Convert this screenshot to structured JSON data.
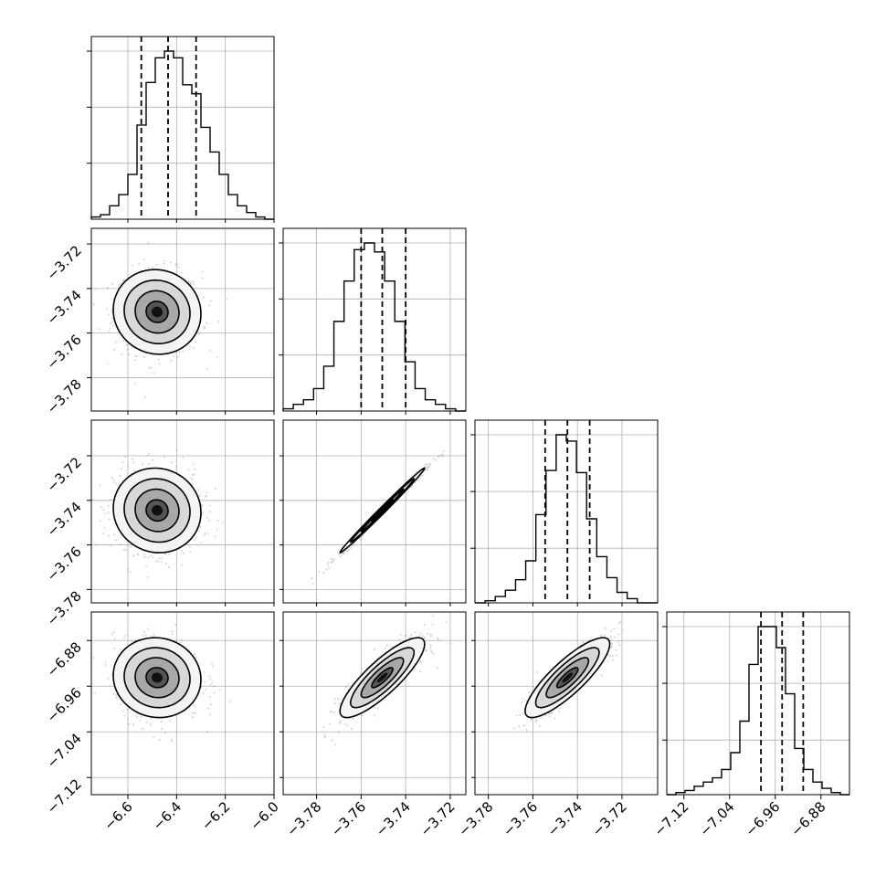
{
  "chart_data": {
    "type": "corner",
    "title": "",
    "n_params": 4,
    "params": [
      {
        "index": 0,
        "label": "",
        "range": [
          -6.75,
          -6.0
        ],
        "ticks": [
          -6.6,
          -6.4,
          -6.2,
          -6.0
        ],
        "tick_labels": [
          "−6.6",
          "−6.4",
          "−6.2",
          "−6.0"
        ],
        "quantiles": [
          -6.545,
          -6.435,
          -6.32
        ]
      },
      {
        "index": 1,
        "label": "",
        "range": [
          -3.795,
          -3.713
        ],
        "ticks": [
          -3.78,
          -3.76,
          -3.74,
          -3.72
        ],
        "tick_labels": [
          "−3.78",
          "−3.76",
          "−3.74",
          "−3.72"
        ],
        "quantiles": [
          -3.76,
          -3.7505,
          -3.74
        ]
      },
      {
        "index": 2,
        "label": "",
        "range": [
          -3.786,
          -3.704
        ],
        "ticks": [
          -3.78,
          -3.76,
          -3.74,
          -3.72
        ],
        "tick_labels": [
          "−3.78",
          "−3.76",
          "−3.74",
          "−3.72"
        ],
        "quantiles": [
          -3.7545,
          -3.7445,
          -3.7345
        ]
      },
      {
        "index": 3,
        "label": "",
        "range": [
          -7.15,
          -6.83
        ],
        "ticks": [
          -7.12,
          -7.04,
          -6.96,
          -6.88
        ],
        "tick_labels": [
          "−7.12",
          "−7.04",
          "−6.96",
          "−6.88"
        ],
        "quantiles": [
          -6.985,
          -6.948,
          -6.911
        ]
      }
    ],
    "histograms": [
      {
        "param": 0,
        "bin_range": [
          -6.75,
          -6.0
        ],
        "counts": [
          1,
          2,
          6,
          11,
          20,
          42,
          61,
          72,
          75,
          72,
          60,
          56,
          41,
          30,
          20,
          11,
          6,
          3,
          1,
          0
        ]
      },
      {
        "param": 1,
        "bin_range": [
          -3.795,
          -3.713
        ],
        "counts": [
          1,
          3,
          5,
          10,
          20,
          40,
          58,
          72,
          75,
          71,
          58,
          40,
          22,
          10,
          5,
          3,
          1,
          0
        ]
      },
      {
        "param": 2,
        "bin_range": [
          -3.786,
          -3.704
        ],
        "counts": [
          0,
          1,
          3,
          6,
          11,
          20,
          42,
          63,
          80,
          77,
          62,
          40,
          22,
          12,
          5,
          2,
          0,
          0
        ]
      },
      {
        "param": 3,
        "bin_range": [
          -7.15,
          -6.83
        ],
        "counts": [
          0,
          1,
          2,
          4,
          6,
          8,
          12,
          20,
          35,
          62,
          80,
          80,
          70,
          48,
          22,
          12,
          6,
          3,
          1,
          0
        ]
      }
    ],
    "pairs": [
      {
        "x": 0,
        "y": 1,
        "center": [
          -6.48,
          -3.7505
        ],
        "sd": [
          0.09,
          0.0095
        ],
        "corr": -0.05
      },
      {
        "x": 0,
        "y": 2,
        "center": [
          -6.48,
          -3.7445
        ],
        "sd": [
          0.09,
          0.0095
        ],
        "corr": -0.05
      },
      {
        "x": 1,
        "y": 2,
        "center": [
          -3.7505,
          -3.7445
        ],
        "sd": [
          0.0095,
          0.0095
        ],
        "corr": 0.995
      },
      {
        "x": 0,
        "y": 3,
        "center": [
          -6.48,
          -6.945
        ],
        "sd": [
          0.09,
          0.035
        ],
        "corr": -0.05
      },
      {
        "x": 1,
        "y": 3,
        "center": [
          -3.7505,
          -6.945
        ],
        "sd": [
          0.0095,
          0.035
        ],
        "corr": 0.84
      },
      {
        "x": 2,
        "y": 3,
        "center": [
          -3.7445,
          -6.945
        ],
        "sd": [
          0.0095,
          0.035
        ],
        "corr": 0.84
      }
    ],
    "contour_levels_sigma": [
      0.5,
      1.0,
      1.5,
      2.0
    ],
    "grid": true,
    "quantile_line_style": "dashed"
  }
}
